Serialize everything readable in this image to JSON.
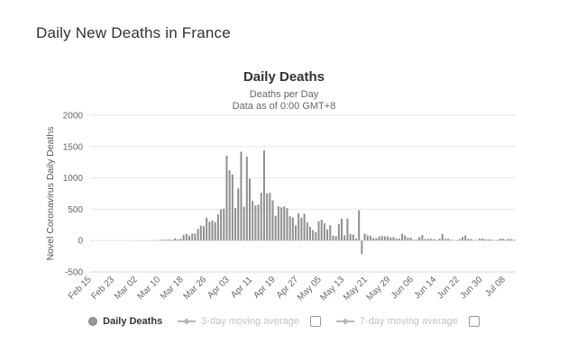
{
  "page": {
    "title": "Daily New Deaths in France"
  },
  "chart": {
    "title": "Daily Deaths",
    "subtitle1": "Deaths per Day",
    "subtitle2": "Data as of 0:00 GMT+8",
    "y_axis_title": "Novel Coronavirus Daily Deaths",
    "legend": {
      "daily": "Daily Deaths",
      "ma3": "3-day moving average",
      "ma7": "7-day moving average"
    },
    "colors": {
      "bar": "#8f8f8f",
      "grid": "#e6e6e6",
      "axis_line": "#ccd6eb",
      "tick_label": "#666666",
      "disabled_legend": "#c2c2c2",
      "legend_marker": "#b5b5b5"
    }
  },
  "chart_data": {
    "type": "bar",
    "title": "Daily Deaths",
    "subtitle": [
      "Deaths per Day",
      "Data as of 0:00 GMT+8"
    ],
    "ylabel": "Novel Coronavirus Daily Deaths",
    "ylim": [
      -500,
      2000
    ],
    "yticks": [
      2000,
      1500,
      1000,
      500,
      0,
      -500
    ],
    "tick_every": 8,
    "legend": [
      "Daily Deaths",
      "3-day moving average",
      "7-day moving average"
    ],
    "legend_position": "bottom",
    "grid": true,
    "dates": [
      "Feb 15",
      "Feb 16",
      "Feb 17",
      "Feb 18",
      "Feb 19",
      "Feb 20",
      "Feb 21",
      "Feb 22",
      "Feb 23",
      "Feb 24",
      "Feb 25",
      "Feb 26",
      "Feb 27",
      "Feb 28",
      "Feb 29",
      "Mar 01",
      "Mar 02",
      "Mar 03",
      "Mar 04",
      "Mar 05",
      "Mar 06",
      "Mar 07",
      "Mar 08",
      "Mar 09",
      "Mar 10",
      "Mar 11",
      "Mar 12",
      "Mar 13",
      "Mar 14",
      "Mar 15",
      "Mar 16",
      "Mar 17",
      "Mar 18",
      "Mar 19",
      "Mar 20",
      "Mar 21",
      "Mar 22",
      "Mar 23",
      "Mar 24",
      "Mar 25",
      "Mar 26",
      "Mar 27",
      "Mar 28",
      "Mar 29",
      "Mar 30",
      "Mar 31",
      "Apr 01",
      "Apr 02",
      "Apr 03",
      "Apr 04",
      "Apr 05",
      "Apr 06",
      "Apr 07",
      "Apr 08",
      "Apr 09",
      "Apr 10",
      "Apr 11",
      "Apr 12",
      "Apr 13",
      "Apr 14",
      "Apr 15",
      "Apr 16",
      "Apr 17",
      "Apr 18",
      "Apr 19",
      "Apr 20",
      "Apr 21",
      "Apr 22",
      "Apr 23",
      "Apr 24",
      "Apr 25",
      "Apr 26",
      "Apr 27",
      "Apr 28",
      "Apr 29",
      "Apr 30",
      "May 01",
      "May 02",
      "May 03",
      "May 04",
      "May 05",
      "May 06",
      "May 07",
      "May 08",
      "May 09",
      "May 10",
      "May 11",
      "May 12",
      "May 13",
      "May 14",
      "May 15",
      "May 16",
      "May 17",
      "May 18",
      "May 19",
      "May 20",
      "May 21",
      "May 22",
      "May 23",
      "May 24",
      "May 25",
      "May 26",
      "May 27",
      "May 28",
      "May 29",
      "May 30",
      "May 31",
      "Jun 01",
      "Jun 02",
      "Jun 03",
      "Jun 04",
      "Jun 05",
      "Jun 06",
      "Jun 07",
      "Jun 08",
      "Jun 09",
      "Jun 10",
      "Jun 11",
      "Jun 12",
      "Jun 13",
      "Jun 14",
      "Jun 15",
      "Jun 16",
      "Jun 17",
      "Jun 18",
      "Jun 19",
      "Jun 20",
      "Jun 21",
      "Jun 22",
      "Jun 23",
      "Jun 24",
      "Jun 25",
      "Jun 26",
      "Jun 27",
      "Jun 28",
      "Jun 29",
      "Jun 30",
      "Jul 01",
      "Jul 02",
      "Jul 03",
      "Jul 04",
      "Jul 05",
      "Jul 06",
      "Jul 07",
      "Jul 08",
      "Jul 09",
      "Jul 10",
      "Jul 11"
    ],
    "values": [
      1,
      0,
      0,
      0,
      0,
      0,
      0,
      0,
      0,
      0,
      0,
      1,
      0,
      1,
      0,
      0,
      1,
      1,
      3,
      1,
      2,
      8,
      3,
      6,
      11,
      15,
      13,
      18,
      12,
      36,
      21,
      27,
      89,
      108,
      78,
      112,
      112,
      186,
      240,
      231,
      365,
      299,
      319,
      292,
      418,
      499,
      509,
      1355,
      1120,
      1053,
      518,
      833,
      1417,
      541,
      1341,
      987,
      635,
      561,
      574,
      762,
      1438,
      753,
      761,
      642,
      395,
      547,
      531,
      544,
      516,
      389,
      369,
      242,
      437,
      367,
      427,
      289,
      218,
      166,
      135,
      306,
      330,
      278,
      178,
      243,
      80,
      70,
      263,
      348,
      83,
      351,
      104,
      96,
      35,
      483,
      -217,
      110,
      83,
      74,
      43,
      35,
      65,
      73,
      66,
      66,
      52,
      57,
      31,
      31,
      107,
      81,
      44,
      46,
      13,
      13,
      54,
      87,
      23,
      27,
      28,
      24,
      9,
      29,
      107,
      28,
      28,
      14,
      7,
      7,
      23,
      57,
      81,
      26,
      26,
      8,
      8,
      31,
      30,
      18,
      18,
      14,
      7,
      7,
      29,
      32,
      14,
      25,
      23,
      12
    ]
  }
}
